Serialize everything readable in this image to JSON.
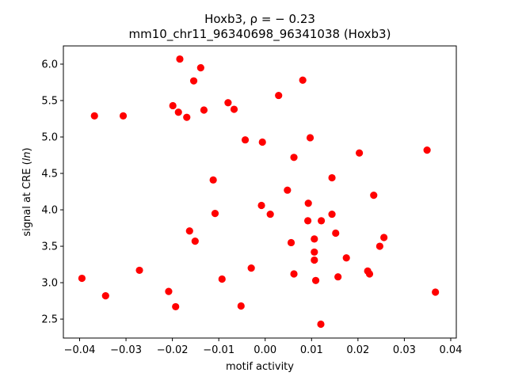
{
  "chart_data": {
    "type": "scatter",
    "title_line1": "Hoxb3, ρ = − 0.23",
    "title_line2": "mm10_chr11_96340698_96341038 (Hoxb3)",
    "xlabel": "motif activity",
    "ylabel_prefix": "signal at CRE (",
    "ylabel_italic": "ln",
    "ylabel_suffix": ")",
    "xlim": [
      -0.0435,
      0.0412
    ],
    "ylim": [
      2.24,
      6.25
    ],
    "grid": false,
    "xticks": [
      -0.04,
      -0.03,
      -0.02,
      -0.01,
      0.0,
      0.01,
      0.02,
      0.03,
      0.04
    ],
    "xtick_labels": [
      "−0.04",
      "−0.03",
      "−0.02",
      "−0.01",
      "0.00",
      "0.01",
      "0.02",
      "0.03",
      "0.04"
    ],
    "yticks": [
      2.5,
      3.0,
      3.5,
      4.0,
      4.5,
      5.0,
      5.5,
      6.0
    ],
    "ytick_labels": [
      "2.5",
      "3.0",
      "3.5",
      "4.0",
      "4.5",
      "5.0",
      "5.5",
      "6.0"
    ],
    "marker_color": "#ff0000",
    "points": [
      {
        "x": -0.0184,
        "y": 6.07
      },
      {
        "x": -0.0139,
        "y": 5.95
      },
      {
        "x": -0.0154,
        "y": 5.77
      },
      {
        "x": 0.0081,
        "y": 5.78
      },
      {
        "x": 0.0029,
        "y": 5.57
      },
      {
        "x": -0.0199,
        "y": 5.43
      },
      {
        "x": -0.008,
        "y": 5.47
      },
      {
        "x": -0.0067,
        "y": 5.38
      },
      {
        "x": -0.0187,
        "y": 5.34
      },
      {
        "x": -0.0132,
        "y": 5.37
      },
      {
        "x": -0.0169,
        "y": 5.27
      },
      {
        "x": -0.0368,
        "y": 5.29
      },
      {
        "x": -0.0306,
        "y": 5.29
      },
      {
        "x": -0.0043,
        "y": 4.96
      },
      {
        "x": -0.0006,
        "y": 4.93
      },
      {
        "x": 0.0097,
        "y": 4.99
      },
      {
        "x": 0.0203,
        "y": 4.78
      },
      {
        "x": 0.0349,
        "y": 4.82
      },
      {
        "x": 0.0062,
        "y": 4.72
      },
      {
        "x": -0.0112,
        "y": 4.41
      },
      {
        "x": 0.0144,
        "y": 4.44
      },
      {
        "x": 0.0048,
        "y": 4.27
      },
      {
        "x": 0.0234,
        "y": 4.2
      },
      {
        "x": 0.0093,
        "y": 4.09
      },
      {
        "x": -0.0008,
        "y": 4.06
      },
      {
        "x": -0.0108,
        "y": 3.95
      },
      {
        "x": 0.0011,
        "y": 3.94
      },
      {
        "x": 0.0144,
        "y": 3.94
      },
      {
        "x": 0.0092,
        "y": 3.85
      },
      {
        "x": 0.0121,
        "y": 3.85
      },
      {
        "x": -0.0163,
        "y": 3.71
      },
      {
        "x": 0.0152,
        "y": 3.68
      },
      {
        "x": 0.0256,
        "y": 3.62
      },
      {
        "x": -0.0151,
        "y": 3.57
      },
      {
        "x": 0.0106,
        "y": 3.6
      },
      {
        "x": 0.0056,
        "y": 3.55
      },
      {
        "x": 0.0247,
        "y": 3.5
      },
      {
        "x": 0.0106,
        "y": 3.42
      },
      {
        "x": 0.0175,
        "y": 3.34
      },
      {
        "x": 0.0106,
        "y": 3.31
      },
      {
        "x": -0.0271,
        "y": 3.17
      },
      {
        "x": -0.003,
        "y": 3.2
      },
      {
        "x": 0.0062,
        "y": 3.12
      },
      {
        "x": 0.0221,
        "y": 3.16
      },
      {
        "x": 0.0225,
        "y": 3.12
      },
      {
        "x": -0.0395,
        "y": 3.06
      },
      {
        "x": -0.0093,
        "y": 3.05
      },
      {
        "x": 0.0109,
        "y": 3.03
      },
      {
        "x": 0.0157,
        "y": 3.08
      },
      {
        "x": -0.0208,
        "y": 2.88
      },
      {
        "x": 0.0367,
        "y": 2.87
      },
      {
        "x": -0.0344,
        "y": 2.82
      },
      {
        "x": -0.0193,
        "y": 2.67
      },
      {
        "x": -0.0052,
        "y": 2.68
      },
      {
        "x": 0.012,
        "y": 2.43
      }
    ]
  }
}
